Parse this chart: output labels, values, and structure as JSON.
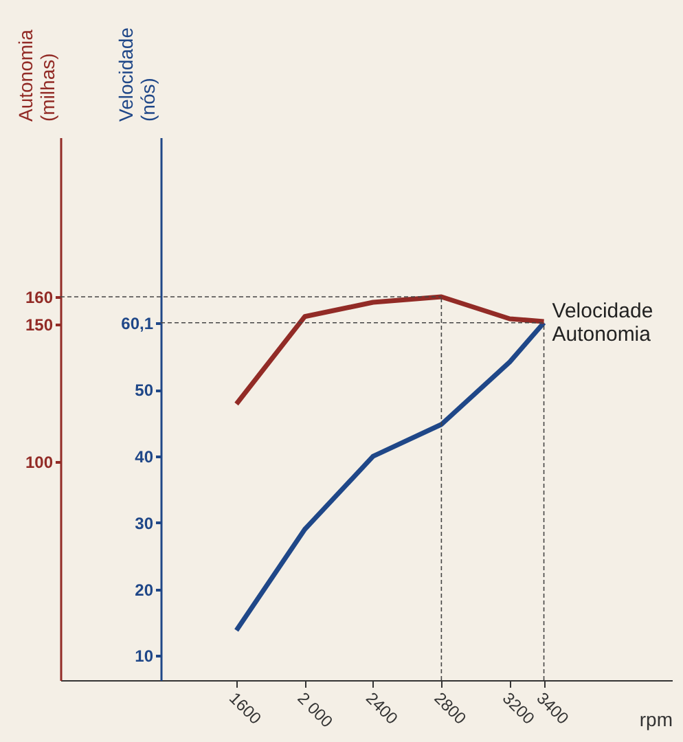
{
  "chart_data": {
    "type": "line",
    "xlabel": "rpm",
    "ylabel": "Velocidade (nós)",
    "y2label": "Autonomia (milhas)",
    "x": [
      1600,
      2000,
      2400,
      2800,
      3200,
      3400
    ],
    "xlim": [
      570,
      4150
    ],
    "xticks": [
      {
        "value": 1600,
        "label": "1600"
      },
      {
        "value": 2000,
        "label": "2 000"
      },
      {
        "value": 2400,
        "label": "2400"
      },
      {
        "value": 2800,
        "label": "2800"
      },
      {
        "value": 3200,
        "label": "3200"
      },
      {
        "value": 3400,
        "label": "3400"
      }
    ],
    "ylim": [
      6.3,
      88
    ],
    "yticks": [
      10,
      20,
      30,
      40,
      50,
      {
        "value": 60.1,
        "label": "60,1"
      }
    ],
    "y2lim": [
      20.5,
      218
    ],
    "y2ticks": [
      100,
      150,
      160
    ],
    "series": [
      {
        "name": "Velocidade",
        "color": "#1f4788",
        "values": [
          13.8,
          29,
          40,
          44.8,
          54.2,
          60.1
        ]
      },
      {
        "name": "Autonomia",
        "color": "#922b26",
        "axis": "y2",
        "values": [
          121,
          152.8,
          158,
          160,
          152,
          151
        ]
      }
    ],
    "ref_lines": [
      {
        "axis": "y2",
        "value": 160,
        "label": null,
        "line_style": "dashed"
      },
      {
        "axis": "y",
        "value": 60.1,
        "label": null,
        "line_style": "dashed"
      },
      {
        "axis": "x",
        "value": 2800,
        "label": null,
        "line_style": "dashed"
      },
      {
        "axis": "x",
        "value": 3400,
        "label": null,
        "line_style": "dashed"
      }
    ],
    "grid": false,
    "marker": "none",
    "line_style": "solid"
  }
}
